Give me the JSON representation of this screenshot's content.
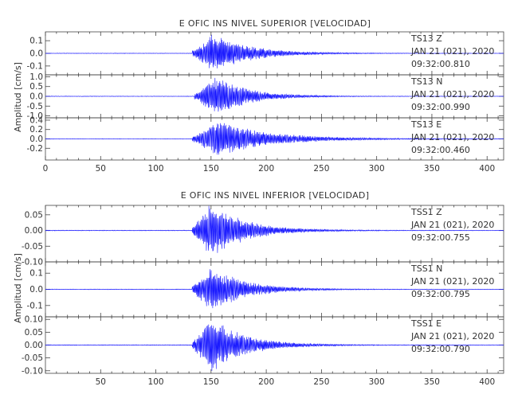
{
  "chart_data": [
    {
      "type": "line",
      "title": "E OFIC INS NIVEL SUPERIOR [VELOCIDAD]",
      "ylabel": "Amplitud [cm/s]",
      "xlabel": "",
      "xlim": [
        0,
        415
      ],
      "x_ticks": [
        0,
        50,
        100,
        150,
        200,
        250,
        300,
        350,
        400
      ],
      "grid": false,
      "panels": [
        {
          "station": "TS13",
          "component": "Z",
          "date": "JAN 21 (021), 2020",
          "time": "09:32:00.810",
          "ylim": [
            -0.17,
            0.17
          ],
          "y_ticks": [
            -0.1,
            0.0,
            0.1
          ],
          "y_tick_labels": [
            "-0.1",
            "0.0",
            "0.1"
          ],
          "peak": 0.16,
          "onset": 133,
          "peak_time": 152,
          "decay": 32,
          "color": "#1a1aff"
        },
        {
          "station": "TS13",
          "component": "N",
          "date": "JAN 21 (021), 2020",
          "time": "09:32:00.990",
          "ylim": [
            -1.1,
            1.1
          ],
          "y_ticks": [
            -1.0,
            -0.5,
            0.0,
            0.5,
            1.0
          ],
          "y_tick_labels": [
            "-1.0",
            "-0.5",
            "0.0",
            "0.5",
            "1.0"
          ],
          "peak": 1.05,
          "onset": 135,
          "peak_time": 155,
          "decay": 28,
          "color": "#1a1aff"
        },
        {
          "station": "TS13",
          "component": "E",
          "date": "JAN 21 (021), 2020",
          "time": "09:32:00.460",
          "ylim": [
            -0.45,
            0.45
          ],
          "y_ticks": [
            -0.2,
            0.0,
            0.2,
            0.4
          ],
          "y_tick_labels": [
            "-0.2",
            "0.0",
            "0.2",
            "0.4"
          ],
          "peak": 0.4,
          "onset": 133,
          "peak_time": 155,
          "decay": 45,
          "color": "#1a1aff"
        }
      ]
    },
    {
      "type": "line",
      "title": "E OFIC INS NIVEL INFERIOR [VELOCIDAD]",
      "ylabel": "Amplitud [cm/s]",
      "xlabel": "",
      "xlim": [
        0,
        415
      ],
      "x_ticks": [
        50,
        100,
        150,
        200,
        250,
        300,
        350,
        400
      ],
      "grid": false,
      "panels": [
        {
          "station": "TSS1",
          "component": "Z",
          "date": "JAN 21 (021), 2020",
          "time": "09:32:00.755",
          "ylim": [
            -0.1,
            0.08
          ],
          "y_ticks": [
            -0.1,
            -0.05,
            0.0,
            0.05
          ],
          "y_tick_labels": [
            "-0.10",
            "-0.05",
            "0.00",
            "0.05"
          ],
          "peak": 0.09,
          "onset": 133,
          "peak_time": 150,
          "decay": 30,
          "color": "#1a1aff"
        },
        {
          "station": "TSS1",
          "component": "N",
          "date": "JAN 21 (021), 2020",
          "time": "09:32:00.795",
          "ylim": [
            -0.17,
            0.17
          ],
          "y_ticks": [
            -0.1,
            0.0,
            0.1
          ],
          "y_tick_labels": [
            "-0.1",
            "0.0",
            "0.1"
          ],
          "peak": 0.15,
          "onset": 133,
          "peak_time": 150,
          "decay": 30,
          "color": "#1a1aff"
        },
        {
          "station": "TSS1",
          "component": "E",
          "date": "JAN 21 (021), 2020",
          "time": "09:32:00.790",
          "ylim": [
            -0.11,
            0.11
          ],
          "y_ticks": [
            -0.1,
            -0.05,
            0.0,
            0.05,
            0.1
          ],
          "y_tick_labels": [
            "-0.10",
            "-0.05",
            "0.00",
            "0.05",
            "0.10"
          ],
          "peak": 0.11,
          "onset": 133,
          "peak_time": 150,
          "decay": 30,
          "color": "#1a1aff"
        }
      ]
    }
  ]
}
